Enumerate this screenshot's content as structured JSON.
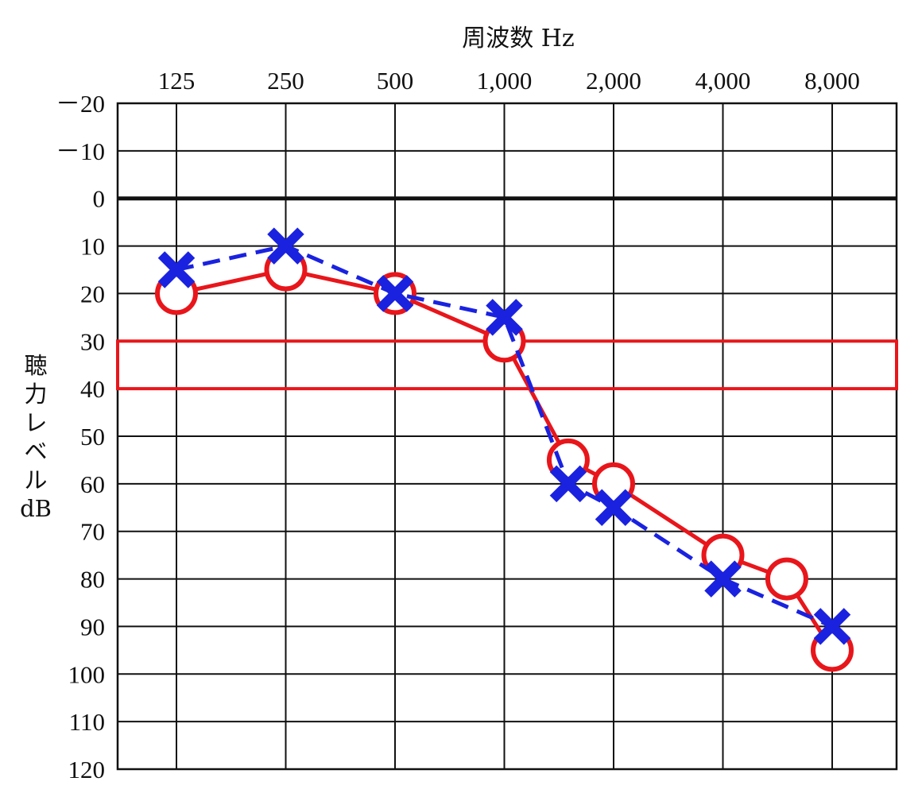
{
  "chart_data": {
    "type": "line",
    "title": "",
    "xlabel": "周波数 Hz",
    "ylabel": "聴力レベル dB",
    "x_ticks": [
      "125",
      "250",
      "500",
      "1,000",
      "2,000",
      "4,000",
      "8,000"
    ],
    "y_ticks": [
      "－20",
      "－10",
      "0",
      "10",
      "20",
      "30",
      "40",
      "50",
      "60",
      "70",
      "80",
      "90",
      "100",
      "110",
      "120"
    ],
    "ylim": [
      -20,
      120
    ],
    "y_inverted": true,
    "x_scale": "log2",
    "grid": true,
    "zero_line_emphasized": true,
    "highlight_band": {
      "y_from": 30,
      "y_to": 40,
      "color": "#e8161b"
    },
    "series": [
      {
        "marker": "circle",
        "line_style": "solid",
        "color": "#e8161b",
        "x": [
          125,
          250,
          500,
          1000,
          1500,
          2000,
          4000,
          6000,
          8000
        ],
        "y": [
          20,
          15,
          20,
          30,
          55,
          60,
          75,
          80,
          95
        ]
      },
      {
        "marker": "cross",
        "line_style": "dashed",
        "color": "#1a22e0",
        "x": [
          125,
          250,
          500,
          1000,
          1500,
          2000,
          4000,
          8000
        ],
        "y": [
          15,
          10,
          20,
          25,
          60,
          65,
          80,
          90
        ]
      }
    ]
  }
}
